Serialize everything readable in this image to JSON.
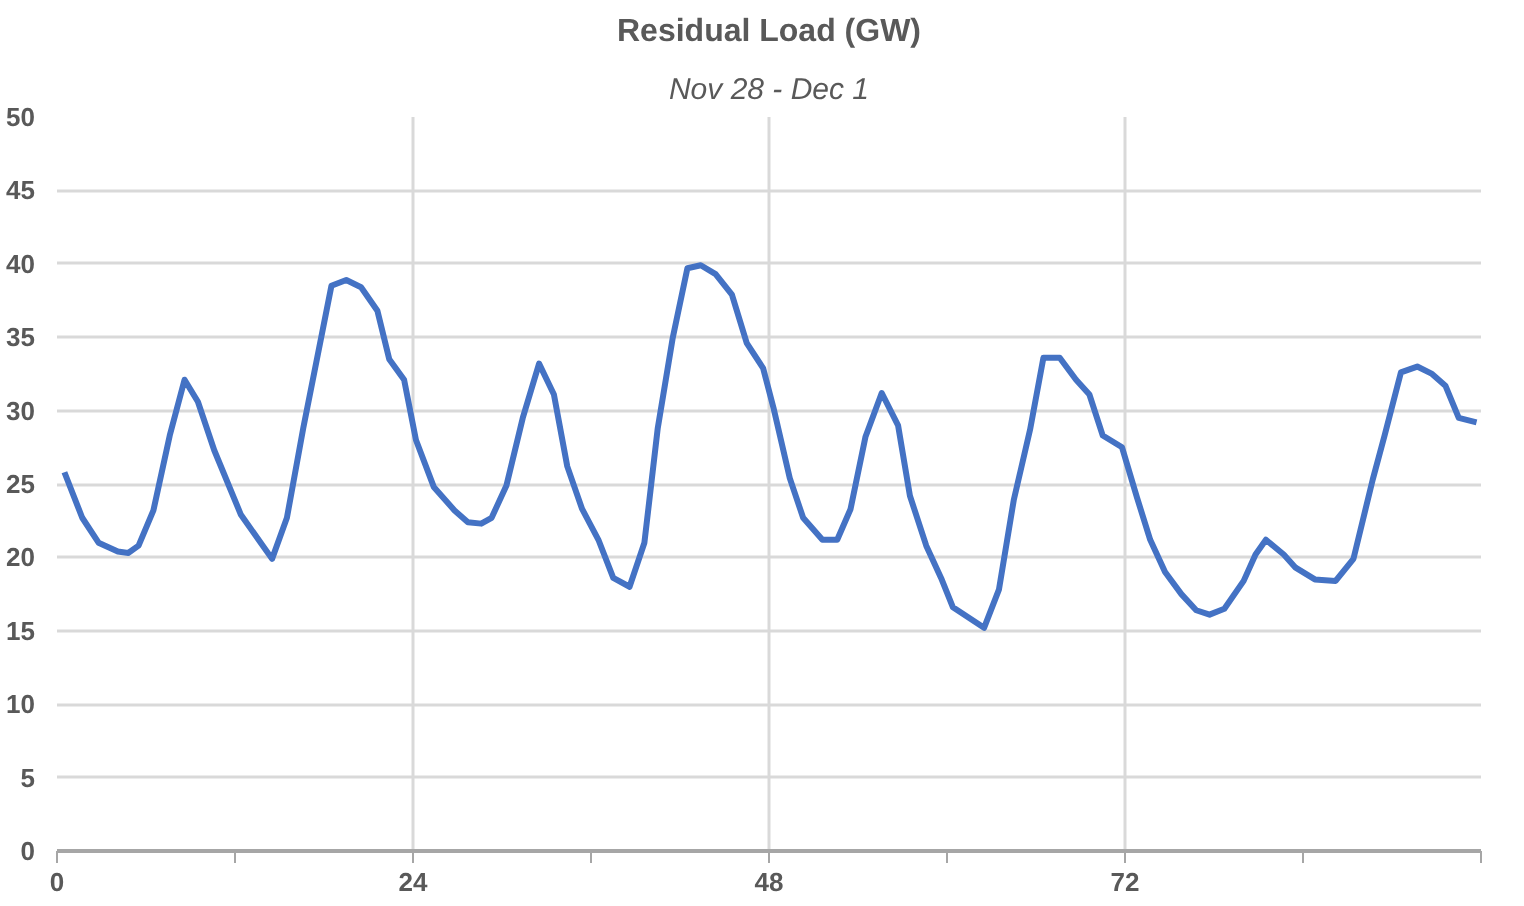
{
  "chart_data": {
    "type": "line",
    "title": "Residual Load (GW)",
    "subtitle": "Nov 28 - Dec 1",
    "xlim": [
      0,
      96
    ],
    "xticks": [
      0,
      {
        "value": 12,
        "label": null
      },
      24,
      {
        "value": 36,
        "label": null
      },
      48,
      {
        "value": 60,
        "label": null
      },
      72,
      {
        "value": 84,
        "label": null
      },
      {
        "value": 96,
        "label": null
      }
    ],
    "ylim": [
      0,
      50
    ],
    "yticks": [
      0,
      5,
      10,
      15,
      20,
      25,
      30,
      35,
      40,
      45,
      50
    ],
    "grid": true,
    "marker": "none",
    "line_style": "solid",
    "series": [
      {
        "color": "#4472c4",
        "x": [
          0.5,
          1.7,
          2.8,
          4.1,
          4.8,
          5.5,
          6.5,
          7.6,
          8.6,
          9.5,
          10.6,
          12.4,
          14.5,
          15.5,
          16.6,
          18.5,
          19.5,
          20.5,
          21.6,
          22.4,
          23.4,
          24.2,
          25.4,
          26.8,
          27.7,
          28.6,
          29.3,
          30.3,
          31.4,
          32.5,
          33.5,
          34.4,
          35.4,
          36.5,
          37.5,
          38.6,
          39.6,
          40.5,
          41.5,
          42.5,
          43.4,
          44.4,
          45.5,
          46.5,
          47.6,
          48.3,
          49.4,
          50.3,
          51.6,
          52.6,
          53.5,
          54.5,
          55.6,
          56.7,
          57.5,
          58.6,
          59.6,
          60.4,
          62.5,
          63.5,
          64.5,
          65.6,
          66.5,
          67.6,
          68.7,
          69.6,
          70.5,
          71.8,
          72.8,
          73.7,
          74.7,
          75.8,
          76.8,
          77.7,
          78.7,
          80.0,
          80.8,
          81.5,
          82.7,
          83.5,
          84.8,
          86.2,
          87.4,
          88.7,
          89.5,
          90.6,
          91.7,
          92.7,
          93.6,
          94.5,
          95.7
        ],
        "values": [
          25.8,
          22.7,
          21.0,
          20.4,
          20.3,
          20.8,
          23.2,
          28.3,
          32.1,
          30.6,
          27.3,
          22.9,
          19.9,
          22.7,
          28.8,
          38.5,
          38.9,
          38.4,
          36.8,
          33.5,
          32.1,
          28.0,
          24.8,
          23.2,
          22.4,
          22.3,
          22.7,
          24.9,
          29.5,
          33.2,
          31.1,
          26.2,
          23.3,
          21.2,
          18.6,
          18.0,
          21.0,
          28.8,
          34.9,
          39.7,
          39.9,
          39.3,
          37.9,
          34.6,
          32.9,
          30.2,
          25.4,
          22.7,
          21.2,
          21.2,
          23.3,
          28.2,
          31.2,
          29.0,
          24.2,
          20.8,
          18.6,
          16.6,
          15.2,
          17.8,
          23.9,
          28.7,
          33.6,
          33.6,
          32.1,
          31.1,
          28.3,
          27.5,
          24.1,
          21.2,
          19.0,
          17.5,
          16.4,
          16.1,
          16.5,
          18.4,
          20.2,
          21.2,
          20.2,
          19.3,
          18.5,
          18.4,
          19.9,
          25.3,
          28.3,
          32.6,
          33.0,
          32.5,
          31.7,
          29.5,
          29.2
        ]
      }
    ]
  }
}
